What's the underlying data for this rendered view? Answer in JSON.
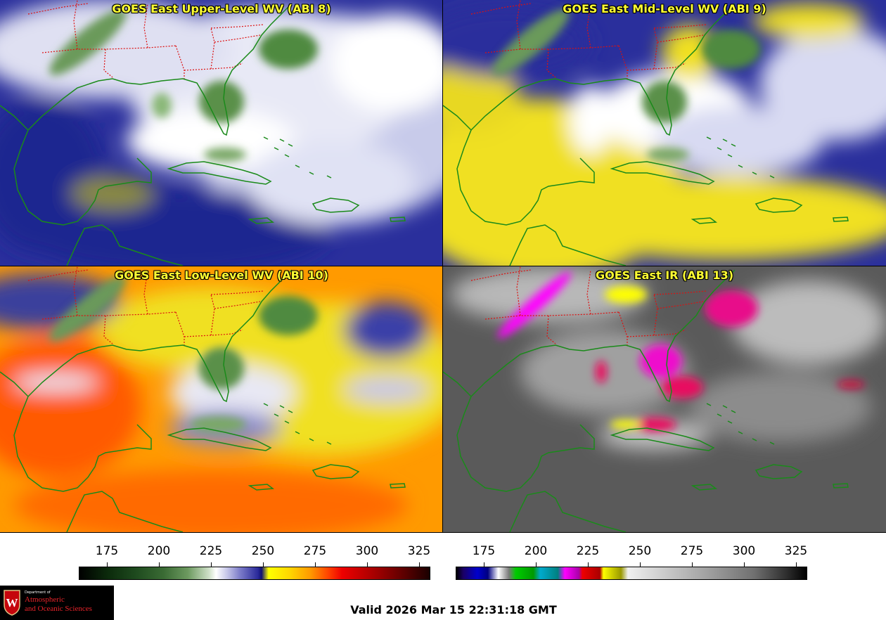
{
  "panels": [
    {
      "title": "GOES East Upper-Level WV (ABI 8)",
      "palette": "wv"
    },
    {
      "title": "GOES East Mid-Level WV (ABI 9)",
      "palette": "wvmid"
    },
    {
      "title": "GOES East Low-Level WV (ABI 10)",
      "palette": "wvlow"
    },
    {
      "title": "GOES East IR (ABI 13)",
      "palette": "ir"
    }
  ],
  "colorbars": {
    "left": {
      "ticks": [
        "175",
        "200",
        "225",
        "250",
        "275",
        "300",
        "325"
      ]
    },
    "right": {
      "ticks": [
        "175",
        "200",
        "225",
        "250",
        "275",
        "300",
        "325"
      ]
    }
  },
  "footer": {
    "valid_time": "Valid 2026 Mar 15 22:31:18 GMT"
  },
  "logo": {
    "department_line": "Department of",
    "line1": "Atmospheric",
    "line2": "and Oceanic Sciences",
    "crest_letter": "W"
  },
  "colors": {
    "title_text": "#ffff33",
    "coastline": "#1a8a1a",
    "state_borders": "#dd1111"
  }
}
